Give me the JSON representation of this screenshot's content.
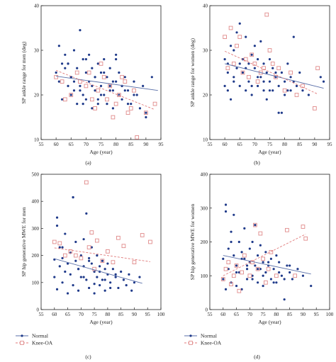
{
  "colors": {
    "normal": "#1f3a8a",
    "knee_oa": "#e08a8a",
    "normal_line": "#5a6fa8",
    "knee_line": "#e07a7a"
  },
  "legend": {
    "normal": "Normal",
    "knee_oa": "Knee-OA"
  },
  "chart_data": [
    {
      "type": "scatter",
      "panel_label": "(a)",
      "xlabel": "Age (year)",
      "ylabel": "SP ankle range for men (deg)",
      "xlim": [
        55,
        95
      ],
      "ylim": [
        10,
        40
      ],
      "xticks": [
        55,
        60,
        65,
        70,
        75,
        80,
        85,
        90,
        95
      ],
      "yticks": [
        10,
        20,
        30,
        40
      ],
      "series": [
        {
          "name": "Normal",
          "marker": "dot",
          "x": [
            60,
            61,
            61,
            62,
            63,
            63,
            64,
            64,
            65,
            65,
            66,
            66,
            67,
            67,
            68,
            68,
            69,
            69,
            70,
            70,
            71,
            71,
            72,
            72,
            73,
            73,
            74,
            74,
            75,
            75,
            76,
            76,
            77,
            77,
            78,
            78,
            79,
            79,
            80,
            80,
            81,
            81,
            82,
            82,
            83,
            84,
            85,
            86,
            87,
            88,
            89,
            90,
            92,
            62,
            65,
            68,
            70,
            72,
            74,
            76,
            78,
            80,
            82,
            84,
            86,
            90,
            64,
            66,
            69,
            73,
            75,
            79,
            83
          ],
          "y": [
            25,
            31,
            23,
            19,
            26,
            29,
            22,
            27,
            24,
            20,
            30,
            23,
            18,
            26,
            34.5,
            22,
            28,
            20,
            25,
            19,
            23,
            29,
            17,
            26,
            21,
            24,
            27,
            19,
            22,
            25,
            20,
            28,
            18,
            24,
            22,
            26,
            21,
            17,
            23,
            28,
            20,
            25,
            22,
            19,
            24,
            21,
            18,
            23,
            20,
            17,
            22,
            15,
            24,
            27,
            24,
            21,
            28,
            22,
            18,
            25,
            21,
            29,
            22,
            18,
            20,
            16,
            27,
            21,
            18,
            24,
            20,
            23,
            21
          ]
        },
        {
          "name": "Knee-OA",
          "marker": "square",
          "x": [
            60,
            62,
            63,
            65,
            67,
            68,
            70,
            71,
            72,
            73,
            74,
            75,
            76,
            77,
            78,
            79,
            80,
            81,
            82,
            83,
            84,
            85,
            86,
            87,
            90,
            93
          ],
          "y": [
            24,
            23,
            19,
            20,
            25,
            23,
            22,
            25,
            19,
            17,
            21,
            27,
            24,
            19,
            22,
            15,
            18,
            20,
            24,
            23,
            16,
            17,
            21,
            10.5,
            16,
            18
          ]
        }
      ],
      "trendlines": [
        {
          "name": "Normal",
          "x": [
            60,
            94
          ],
          "y": [
            24.2,
            21.0
          ]
        },
        {
          "name": "Knee-OA",
          "x": [
            60,
            93
          ],
          "y": [
            25.5,
            16.7
          ]
        }
      ]
    },
    {
      "type": "scatter",
      "panel_label": "(b)",
      "xlabel": "Age (year)",
      "ylabel": "SP ankle range for women (deg)",
      "xlim": [
        55,
        95
      ],
      "ylim": [
        10,
        40
      ],
      "xticks": [
        55,
        60,
        65,
        70,
        75,
        80,
        85,
        90,
        95
      ],
      "yticks": [
        10,
        20,
        30,
        40
      ],
      "series": [
        {
          "name": "Normal",
          "marker": "dot",
          "x": [
            60,
            60,
            61,
            61,
            62,
            62,
            63,
            63,
            64,
            64,
            65,
            65,
            66,
            66,
            67,
            67,
            68,
            68,
            69,
            69,
            70,
            70,
            71,
            71,
            72,
            72,
            73,
            73,
            74,
            74,
            75,
            75,
            76,
            76,
            77,
            78,
            78,
            79,
            80,
            80,
            81,
            82,
            82,
            83,
            84,
            85,
            86,
            88,
            92,
            93,
            61,
            63,
            65,
            67,
            69,
            71,
            73,
            75,
            77,
            79,
            81,
            83
          ],
          "y": [
            28,
            22,
            27,
            21,
            31,
            19,
            30,
            24,
            34,
            26,
            36,
            22,
            28,
            25,
            33,
            21,
            27,
            23,
            29,
            20,
            26,
            31,
            22,
            28,
            24,
            32,
            21,
            27,
            25,
            19,
            23,
            28,
            21,
            26,
            24,
            22,
            16,
            25,
            23,
            20,
            27,
            24,
            21,
            33,
            22,
            25,
            21,
            20,
            24,
            23,
            25,
            23,
            27,
            26,
            22,
            24,
            23,
            21,
            25,
            16,
            21,
            23
          ]
        },
        {
          "name": "Knee-OA",
          "marker": "square",
          "x": [
            60,
            61,
            62,
            63,
            64,
            65,
            66,
            67,
            68,
            69,
            70,
            71,
            72,
            73,
            74,
            75,
            76,
            77,
            78,
            80,
            82,
            84,
            86,
            90,
            91
          ],
          "y": [
            33,
            26,
            35,
            27,
            31,
            33,
            25,
            28,
            24,
            29,
            27,
            23,
            25,
            26,
            38,
            30,
            27,
            24,
            26,
            21,
            25,
            20,
            22,
            17,
            26
          ]
        }
      ],
      "trendlines": [
        {
          "name": "Normal",
          "x": [
            60,
            93
          ],
          "y": [
            27.0,
            21.5
          ]
        },
        {
          "name": "Knee-OA",
          "x": [
            60,
            91
          ],
          "y": [
            29.8,
            20.2
          ]
        }
      ]
    },
    {
      "type": "scatter",
      "panel_label": "(c)",
      "xlabel": "Age (year)",
      "ylabel": "SP hip generative MWE for men",
      "xlim": [
        55,
        100
      ],
      "ylim": [
        0,
        500
      ],
      "xticks": [
        55,
        60,
        65,
        70,
        75,
        80,
        85,
        90,
        95,
        100
      ],
      "yticks": [
        0,
        100,
        200,
        300,
        400,
        500
      ],
      "series": [
        {
          "name": "Normal",
          "marker": "dot",
          "x": [
            60,
            60,
            61,
            61,
            62,
            62,
            63,
            63,
            64,
            64,
            65,
            65,
            66,
            66,
            67,
            67,
            68,
            68,
            69,
            69,
            70,
            70,
            71,
            71,
            72,
            72,
            73,
            73,
            74,
            74,
            75,
            75,
            76,
            76,
            77,
            77,
            78,
            78,
            79,
            79,
            80,
            80,
            81,
            82,
            83,
            84,
            85,
            86,
            87,
            88,
            89,
            90,
            92,
            61,
            63,
            65,
            67,
            69,
            71,
            73,
            75,
            77,
            79,
            81,
            83
          ],
          "y": [
            185,
            120,
            340,
            75,
            160,
            230,
            190,
            100,
            140,
            280,
            170,
            60,
            210,
            130,
            415,
            90,
            180,
            250,
            150,
            70,
            200,
            120,
            260,
            160,
            110,
            355,
            190,
            80,
            170,
            230,
            140,
            60,
            200,
            120,
            160,
            90,
            180,
            110,
            150,
            70,
            130,
            170,
            100,
            150,
            120,
            80,
            140,
            110,
            90,
            130,
            70,
            100,
            120,
            310,
            230,
            170,
            415,
            150,
            120,
            180,
            95,
            140,
            110,
            80,
            130
          ]
        },
        {
          "name": "Knee-OA",
          "marker": "square",
          "x": [
            60,
            62,
            64,
            66,
            68,
            70,
            72,
            73,
            74,
            75,
            76,
            78,
            80,
            82,
            84,
            86,
            90,
            93,
            96
          ],
          "y": [
            250,
            245,
            200,
            215,
            200,
            190,
            470,
            230,
            285,
            150,
            255,
            180,
            215,
            175,
            265,
            235,
            175,
            275,
            250
          ]
        }
      ],
      "trendlines": [
        {
          "name": "Normal",
          "x": [
            60,
            93
          ],
          "y": [
            188,
            97
          ]
        },
        {
          "name": "Knee-OA",
          "x": [
            60,
            96
          ],
          "y": [
            228,
            177
          ]
        }
      ]
    },
    {
      "type": "scatter",
      "panel_label": "(d)",
      "xlabel": "Age (year)",
      "ylabel": "SP hip generative MWE for women",
      "xlim": [
        55,
        100
      ],
      "ylim": [
        0,
        400
      ],
      "xticks": [
        55,
        60,
        65,
        70,
        75,
        80,
        85,
        90,
        95,
        100
      ],
      "yticks": [
        0,
        100,
        200,
        300,
        400
      ],
      "series": [
        {
          "name": "Normal",
          "marker": "dot",
          "x": [
            60,
            60,
            61,
            61,
            62,
            62,
            63,
            63,
            64,
            64,
            65,
            65,
            66,
            66,
            67,
            67,
            68,
            68,
            69,
            69,
            70,
            70,
            71,
            71,
            72,
            72,
            73,
            73,
            74,
            74,
            75,
            75,
            76,
            76,
            77,
            78,
            78,
            79,
            80,
            80,
            81,
            82,
            83,
            84,
            85,
            86,
            88,
            90,
            93,
            61,
            63,
            65,
            67,
            69,
            71,
            73,
            75,
            77,
            79,
            81,
            83,
            85
          ],
          "y": [
            150,
            90,
            310,
            60,
            180,
            120,
            230,
            80,
            160,
            280,
            130,
            70,
            200,
            110,
            170,
            60,
            150,
            240,
            120,
            90,
            180,
            140,
            100,
            200,
            130,
            250,
            160,
            80,
            120,
            190,
            140,
            70,
            170,
            110,
            130,
            150,
            90,
            120,
            160,
            80,
            140,
            100,
            30,
            130,
            110,
            90,
            120,
            100,
            70,
            290,
            200,
            110,
            150,
            130,
            90,
            120,
            100,
            140,
            80,
            110,
            90,
            130
          ]
        },
        {
          "name": "Knee-OA",
          "marker": "square",
          "x": [
            60,
            61,
            62,
            63,
            64,
            65,
            66,
            67,
            68,
            70,
            71,
            72,
            73,
            74,
            75,
            76,
            77,
            78,
            80,
            84,
            87,
            90,
            91
          ],
          "y": [
            90,
            120,
            140,
            75,
            100,
            130,
            55,
            110,
            160,
            100,
            140,
            250,
            120,
            225,
            150,
            80,
            120,
            170,
            100,
            235,
            100,
            245,
            210
          ]
        }
      ],
      "trendlines": [
        {
          "name": "Normal",
          "x": [
            60,
            93
          ],
          "y": [
            160,
            105
          ]
        },
        {
          "name": "Knee-OA",
          "x": [
            60,
            91
          ],
          "y": [
            100,
            223
          ]
        }
      ]
    }
  ]
}
